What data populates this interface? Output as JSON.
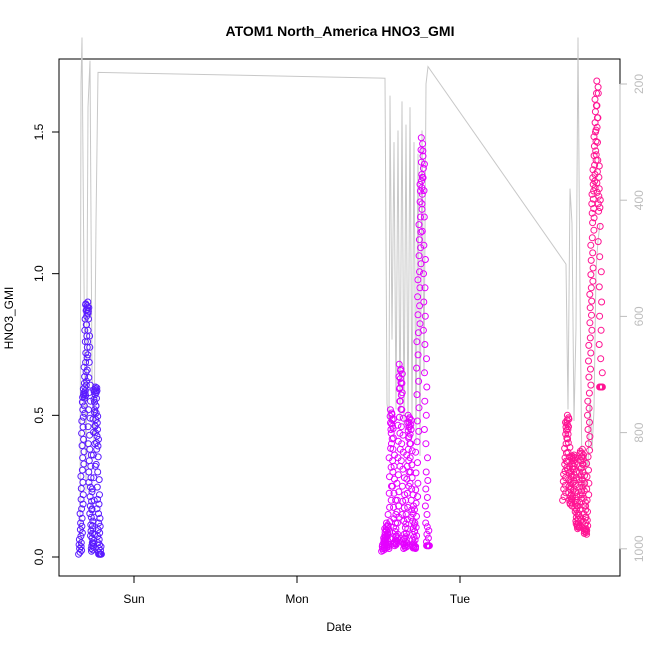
{
  "chart_data": {
    "type": "scatter",
    "title": "ATOM1 North_America HNO3_GMI",
    "xlabel": "Date",
    "ylabel": "HNO3_GMI",
    "x_ticks": [
      "Sun",
      "Mon",
      "Tue"
    ],
    "y_ticks": [
      "0.0",
      "0.5",
      "1.0",
      "1.5"
    ],
    "y_right_ticks": [
      "200",
      "400",
      "600",
      "800",
      "1000"
    ],
    "ylim": [
      0,
      1.72
    ],
    "y_right_lim": [
      1030,
      150
    ],
    "secondary_axis": "pressure (right, grey line)",
    "grid": false,
    "series": [
      {
        "color": "#5a1bff",
        "segments": [
          {
            "day": -0.4,
            "t": [
              0.0,
              0.03,
              0.06,
              0.09,
              0.12,
              0.15,
              0.18,
              0.21,
              0.24,
              0.27,
              0.3,
              0.33,
              0.36,
              0.4,
              0.43,
              0.46,
              0.5,
              0.53,
              0.56,
              0.6,
              0.63,
              0.66,
              0.7,
              0.73,
              0.76,
              0.8,
              0.83,
              0.86,
              0.9,
              0.93,
              0.96,
              1.0
            ],
            "span": [
              0.0,
              0.155
            ],
            "values": [
              0.01,
              0.05,
              0.12,
              0.22,
              0.35,
              0.48,
              0.56,
              0.58,
              0.62,
              0.72,
              0.84,
              0.9,
              0.86,
              0.74,
              0.58,
              0.4,
              0.28,
              0.18,
              0.1,
              0.05,
              0.02,
              0.2,
              0.44,
              0.58,
              0.6,
              0.52,
              0.45,
              0.38,
              0.22,
              0.12,
              0.05,
              0.01
            ]
          }
        ]
      },
      {
        "color": "#e400ff",
        "segments": [
          {
            "day": 1.52,
            "span": [
              1.52,
              1.8
            ],
            "values": [
              0.02,
              0.04,
              0.06,
              0.08,
              0.12,
              0.05,
              0.03,
              0.1,
              0.25,
              0.45,
              0.52,
              0.42,
              0.3,
              0.15,
              0.06,
              0.04,
              0.08,
              0.2,
              0.38,
              0.55,
              0.68,
              0.58,
              0.4,
              0.22,
              0.08,
              0.03,
              0.05,
              0.15,
              0.3,
              0.42,
              0.5,
              0.45,
              0.3,
              0.18,
              0.1,
              0.04,
              0.03,
              0.12,
              0.26,
              0.48,
              0.76,
              0.95,
              1.12,
              1.28,
              1.35,
              1.48,
              1.2,
              0.9,
              0.6,
              0.3,
              0.12,
              0.04
            ]
          }
        ]
      },
      {
        "color": "#ff1493",
        "segments": [
          {
            "day": 2.46,
            "span": [
              2.46,
              2.82
            ],
            "values": [
              0.2,
              0.28,
              0.35,
              0.45,
              0.5,
              0.42,
              0.32,
              0.25,
              0.18,
              0.22,
              0.3,
              0.36,
              0.34,
              0.28,
              0.2,
              0.16,
              0.12,
              0.1,
              0.14,
              0.22,
              0.3,
              0.38,
              0.34,
              0.26,
              0.18,
              0.1,
              0.08,
              0.14,
              0.26,
              0.4,
              0.55,
              0.72,
              0.88,
              1.02,
              1.18,
              1.28,
              1.35,
              1.45,
              1.55,
              1.68,
              1.42,
              1.3,
              1.22,
              0.9,
              0.6
            ]
          }
        ]
      }
    ]
  }
}
